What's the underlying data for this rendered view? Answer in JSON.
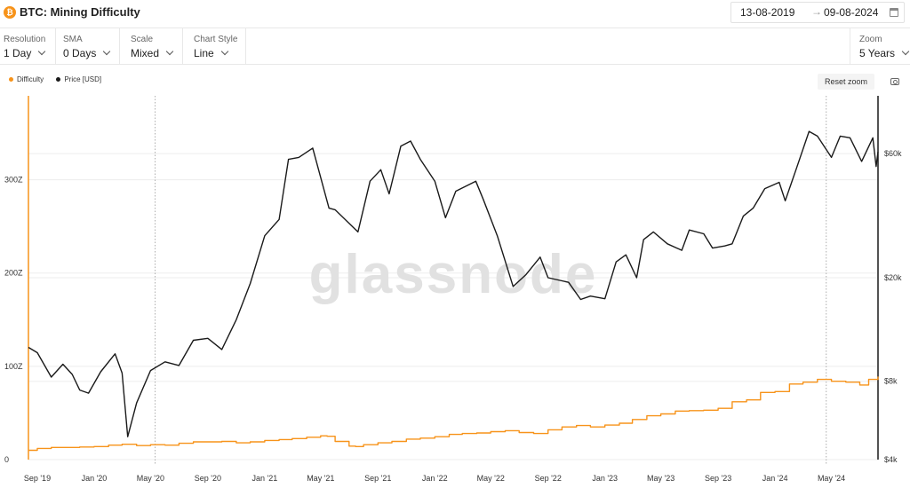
{
  "header": {
    "title": "BTC: Mining Difficulty",
    "coin_icon": "bitcoin-icon",
    "date_start": "13-08-2019",
    "date_arrow": "→",
    "date_end": "09-08-2024",
    "calendar_icon": "calendar-icon"
  },
  "controls": {
    "resolution": {
      "label": "Resolution",
      "value": "1 Day"
    },
    "sma": {
      "label": "SMA",
      "value": "0 Days"
    },
    "scale": {
      "label": "Scale",
      "value": "Mixed"
    },
    "chart_style": {
      "label": "Chart Style",
      "value": "Line"
    },
    "zoom": {
      "label": "Zoom",
      "value": "5 Years"
    }
  },
  "toolbar": {
    "reset_zoom": "Reset zoom",
    "camera_icon": "camera-icon"
  },
  "watermark": "glassnode",
  "chart_data": {
    "type": "line",
    "title": "BTC: Mining Difficulty",
    "x_ticks": [
      "Sep '19",
      "Jan '20",
      "May '20",
      "Sep '20",
      "Jan '21",
      "May '21",
      "Sep '21",
      "Jan '22",
      "May '22",
      "Sep '22",
      "Jan '23",
      "May '23",
      "Sep '23",
      "Jan '24",
      "May '24"
    ],
    "x_range": [
      "2019-08-13",
      "2024-08-09"
    ],
    "y_left": {
      "label": "",
      "ticks": [
        "0",
        "100Z",
        "200Z",
        "300Z"
      ],
      "range": [
        0,
        390
      ],
      "unit": "Z"
    },
    "y_right": {
      "label": "",
      "ticks": [
        "$4k",
        "$8k",
        "$20k",
        "$60k"
      ],
      "scale": "log",
      "range": [
        4000,
        100000
      ]
    },
    "vertical_markers": [
      "2020-05-11",
      "2024-04-20"
    ],
    "grid": true,
    "legend_position": "top-left",
    "series": [
      {
        "name": "Difficulty",
        "color": "#f7931a",
        "axis": "left",
        "step": true,
        "points": [
          [
            "2019-08-13",
            10
          ],
          [
            "2019-09-01",
            12
          ],
          [
            "2019-10-01",
            13
          ],
          [
            "2019-11-01",
            13
          ],
          [
            "2019-12-01",
            13.5
          ],
          [
            "2020-01-01",
            14
          ],
          [
            "2020-02-01",
            15.5
          ],
          [
            "2020-03-01",
            16.5
          ],
          [
            "2020-04-01",
            15
          ],
          [
            "2020-05-01",
            16
          ],
          [
            "2020-06-01",
            15.5
          ],
          [
            "2020-07-01",
            17.5
          ],
          [
            "2020-08-01",
            19
          ],
          [
            "2020-09-01",
            19
          ],
          [
            "2020-10-01",
            19.5
          ],
          [
            "2020-11-01",
            18
          ],
          [
            "2020-12-01",
            19
          ],
          [
            "2021-01-01",
            20.5
          ],
          [
            "2021-02-01",
            21.5
          ],
          [
            "2021-03-01",
            22.5
          ],
          [
            "2021-04-01",
            24
          ],
          [
            "2021-05-01",
            25.5
          ],
          [
            "2021-05-15",
            25
          ],
          [
            "2021-06-01",
            19.5
          ],
          [
            "2021-07-01",
            14.5
          ],
          [
            "2021-07-15",
            14
          ],
          [
            "2021-08-01",
            16
          ],
          [
            "2021-09-01",
            18
          ],
          [
            "2021-10-01",
            19.5
          ],
          [
            "2021-11-01",
            22
          ],
          [
            "2021-12-01",
            23
          ],
          [
            "2022-01-01",
            24.5
          ],
          [
            "2022-02-01",
            27
          ],
          [
            "2022-03-01",
            28
          ],
          [
            "2022-04-01",
            28.5
          ],
          [
            "2022-05-01",
            30
          ],
          [
            "2022-06-01",
            31
          ],
          [
            "2022-07-01",
            29
          ],
          [
            "2022-08-01",
            28
          ],
          [
            "2022-09-01",
            32
          ],
          [
            "2022-10-01",
            35
          ],
          [
            "2022-11-01",
            36.5
          ],
          [
            "2022-12-01",
            35
          ],
          [
            "2023-01-01",
            37
          ],
          [
            "2023-02-01",
            39
          ],
          [
            "2023-03-01",
            43
          ],
          [
            "2023-04-01",
            47
          ],
          [
            "2023-05-01",
            49
          ],
          [
            "2023-06-01",
            52
          ],
          [
            "2023-07-01",
            52.5
          ],
          [
            "2023-08-01",
            53
          ],
          [
            "2023-09-01",
            55
          ],
          [
            "2023-10-01",
            62
          ],
          [
            "2023-11-01",
            64
          ],
          [
            "2023-12-01",
            72
          ],
          [
            "2024-01-01",
            73
          ],
          [
            "2024-02-01",
            81
          ],
          [
            "2024-03-01",
            83
          ],
          [
            "2024-04-01",
            86
          ],
          [
            "2024-05-01",
            84
          ],
          [
            "2024-06-01",
            83
          ],
          [
            "2024-07-01",
            80
          ],
          [
            "2024-07-20",
            86
          ],
          [
            "2024-08-09",
            89
          ]
        ]
      },
      {
        "name": "Price [USD]",
        "color": "#1a1a1a",
        "axis": "right",
        "step": false,
        "points": [
          [
            "2019-08-13",
            10800
          ],
          [
            "2019-09-01",
            10300
          ],
          [
            "2019-10-01",
            8300
          ],
          [
            "2019-10-26",
            9300
          ],
          [
            "2019-11-15",
            8500
          ],
          [
            "2019-12-01",
            7400
          ],
          [
            "2019-12-20",
            7200
          ],
          [
            "2020-01-15",
            8700
          ],
          [
            "2020-02-15",
            10200
          ],
          [
            "2020-03-01",
            8600
          ],
          [
            "2020-03-13",
            4900
          ],
          [
            "2020-04-01",
            6600
          ],
          [
            "2020-05-01",
            8800
          ],
          [
            "2020-06-01",
            9500
          ],
          [
            "2020-07-01",
            9200
          ],
          [
            "2020-08-01",
            11500
          ],
          [
            "2020-09-01",
            11700
          ],
          [
            "2020-10-01",
            10600
          ],
          [
            "2020-11-01",
            13800
          ],
          [
            "2020-12-01",
            19000
          ],
          [
            "2021-01-01",
            29000
          ],
          [
            "2021-02-01",
            33500
          ],
          [
            "2021-02-21",
            57000
          ],
          [
            "2021-03-15",
            58000
          ],
          [
            "2021-04-14",
            63000
          ],
          [
            "2021-05-19",
            37000
          ],
          [
            "2021-06-01",
            36500
          ],
          [
            "2021-07-20",
            30000
          ],
          [
            "2021-08-15",
            47000
          ],
          [
            "2021-09-07",
            52000
          ],
          [
            "2021-09-25",
            42000
          ],
          [
            "2021-10-20",
            64000
          ],
          [
            "2021-11-10",
            67000
          ],
          [
            "2021-12-01",
            57000
          ],
          [
            "2022-01-01",
            47000
          ],
          [
            "2022-01-24",
            34000
          ],
          [
            "2022-02-15",
            43000
          ],
          [
            "2022-03-30",
            47000
          ],
          [
            "2022-04-15",
            40000
          ],
          [
            "2022-05-15",
            29000
          ],
          [
            "2022-06-18",
            18500
          ],
          [
            "2022-07-15",
            20500
          ],
          [
            "2022-08-15",
            24000
          ],
          [
            "2022-09-01",
            20000
          ],
          [
            "2022-10-15",
            19200
          ],
          [
            "2022-11-10",
            16500
          ],
          [
            "2022-12-01",
            17000
          ],
          [
            "2023-01-01",
            16600
          ],
          [
            "2023-01-25",
            23000
          ],
          [
            "2023-02-15",
            24500
          ],
          [
            "2023-03-10",
            20000
          ],
          [
            "2023-03-25",
            28000
          ],
          [
            "2023-04-15",
            30000
          ],
          [
            "2023-05-15",
            27000
          ],
          [
            "2023-06-15",
            25500
          ],
          [
            "2023-07-01",
            30500
          ],
          [
            "2023-08-01",
            29500
          ],
          [
            "2023-08-20",
            26000
          ],
          [
            "2023-09-15",
            26500
          ],
          [
            "2023-10-01",
            27000
          ],
          [
            "2023-10-25",
            34500
          ],
          [
            "2023-11-15",
            37000
          ],
          [
            "2023-12-10",
            44000
          ],
          [
            "2024-01-10",
            46500
          ],
          [
            "2024-01-23",
            39500
          ],
          [
            "2024-02-15",
            52000
          ],
          [
            "2024-03-14",
            73000
          ],
          [
            "2024-04-01",
            70000
          ],
          [
            "2024-05-01",
            58000
          ],
          [
            "2024-05-20",
            70000
          ],
          [
            "2024-06-10",
            69000
          ],
          [
            "2024-07-05",
            56000
          ],
          [
            "2024-07-29",
            69000
          ],
          [
            "2024-08-05",
            53500
          ],
          [
            "2024-08-09",
            61000
          ]
        ]
      }
    ]
  }
}
